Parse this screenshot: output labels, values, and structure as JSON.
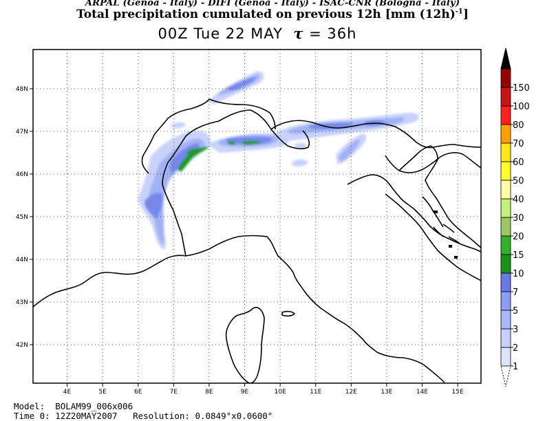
{
  "header": {
    "credits": "ARPAL (Genoa - Italy)  -  DIFI (Genoa - Italy)  -  ISAC-CNR (Bologna - Italy)",
    "title_main": "Total precipitation cumulated on previous 12h [mm (12h)",
    "title_exp": "-1",
    "title_end": "]",
    "time_label": "00Z Tue 22 MAY",
    "tau_symbol": "τ",
    "tau_value": "= 36h"
  },
  "map": {
    "lon_labels": [
      "4E",
      "5E",
      "6E",
      "7E",
      "8E",
      "9E",
      "10E",
      "11E",
      "12E",
      "13E",
      "14E",
      "15E"
    ],
    "lat_labels": [
      "48N",
      "47N",
      "46N",
      "45N",
      "44N",
      "43N",
      "42N"
    ],
    "coastline_color": "#000000",
    "gridline_color": "#555555",
    "precip_colors": {
      "light": "#c8d2fa",
      "medium": "#a0b2f5",
      "heavy": "#7688ec",
      "peak": "#1a9a28"
    }
  },
  "legend": {
    "colors": [
      "#dde3fc",
      "#c6d0fa",
      "#a9b8f6",
      "#8b9cf1",
      "#6a77e6",
      "#189218",
      "#34b02c",
      "#9dc663",
      "#c2f27c",
      "#ffffa8",
      "#ffff30",
      "#ffe81a",
      "#ffa000",
      "#ff2020",
      "#c81414",
      "#960000",
      "#000000"
    ],
    "labels": [
      "1",
      "2",
      "3",
      "5",
      "7",
      "10",
      "15",
      "20",
      "30",
      "40",
      "50",
      "60",
      "70",
      "80",
      "100",
      "150"
    ]
  },
  "footer": {
    "model_label": "Model:",
    "model_value": "BOLAM99_006x006",
    "time0_label": "Time 0:",
    "time0_value": "12Z20MAY2007",
    "resolution_label": "Resolution:",
    "resolution_value": "0.0849°x0.0600°"
  }
}
